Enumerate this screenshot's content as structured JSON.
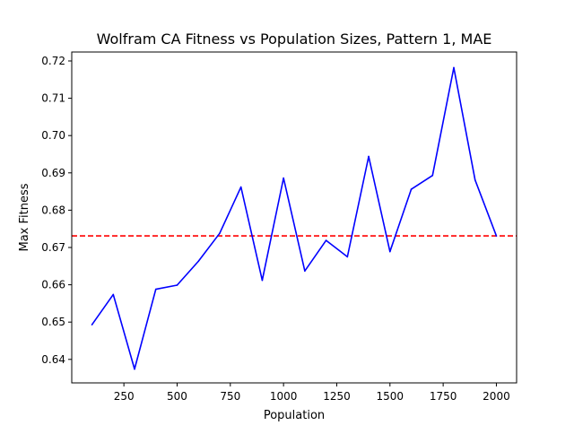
{
  "chart_data": {
    "type": "line",
    "title": "Wolfram CA Fitness vs Population Sizes, Pattern 1, MAE",
    "xlabel": "Population",
    "ylabel": "Max Fitness",
    "xlim": [
      5,
      2095
    ],
    "ylim": [
      0.6337,
      0.7224
    ],
    "x_ticks": [
      250,
      500,
      750,
      1000,
      1250,
      1500,
      1750,
      2000
    ],
    "x_tick_labels": [
      "250",
      "500",
      "750",
      "1000",
      "1250",
      "1500",
      "1750",
      "2000"
    ],
    "y_ticks": [
      0.64,
      0.65,
      0.66,
      0.67,
      0.68,
      0.69,
      0.7,
      0.71,
      0.72
    ],
    "y_tick_labels": [
      "0.64",
      "0.65",
      "0.66",
      "0.67",
      "0.68",
      "0.69",
      "0.70",
      "0.71",
      "0.72"
    ],
    "grid": false,
    "series": [
      {
        "color": "#0000ff",
        "style": "solid",
        "x": [
          100,
          200,
          300,
          400,
          500,
          600,
          700,
          800,
          900,
          1000,
          1100,
          1200,
          1300,
          1400,
          1500,
          1600,
          1700,
          1800,
          1900,
          2000
        ],
        "y": [
          0.6493,
          0.6574,
          0.6374,
          0.6588,
          0.6599,
          0.6663,
          0.6738,
          0.6862,
          0.6612,
          0.6886,
          0.6637,
          0.6719,
          0.6675,
          0.6944,
          0.6689,
          0.6856,
          0.6893,
          0.7182,
          0.6881,
          0.6731
        ]
      }
    ],
    "reference_line": {
      "orientation": "horizontal",
      "y": 0.6731,
      "color": "#ff0000",
      "style": "dashed"
    }
  }
}
